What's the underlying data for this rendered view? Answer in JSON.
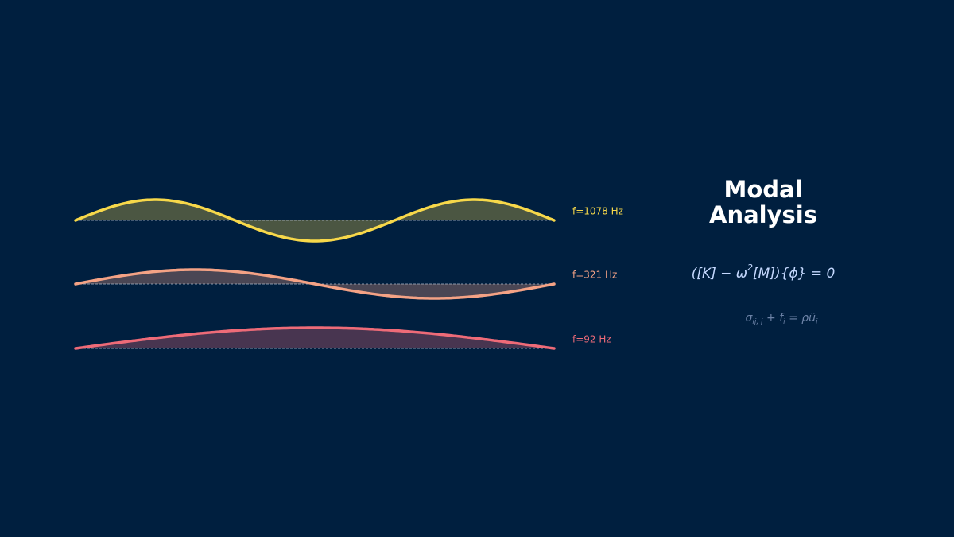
{
  "title_lines": [
    "Modal",
    "Analysis"
  ],
  "equation_1": [
    "([K] − ω",
    "2",
    "[M]){ϕ} = 0"
  ],
  "equation_2": [
    "σ",
    "ij, j",
    " + f",
    "i",
    " = ρü",
    "i"
  ],
  "modes": [
    {
      "label": "f=1078 Hz",
      "color": "#f7d84a"
    },
    {
      "label": "f=321 Hz",
      "color": "#f4a285"
    },
    {
      "label": "f=92 Hz",
      "color": "#ee6b78"
    }
  ]
}
